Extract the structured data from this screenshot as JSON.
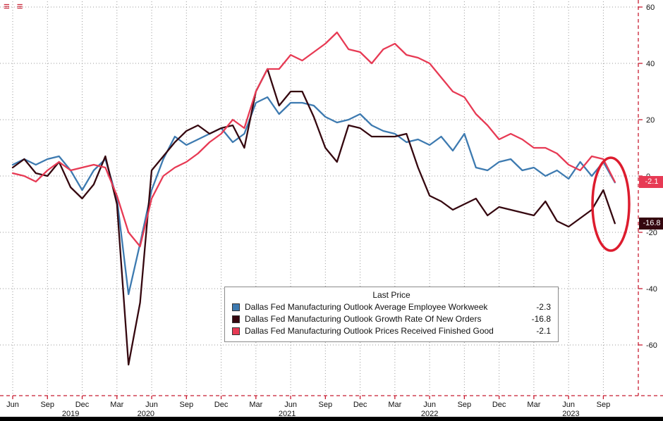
{
  "window": {
    "menu_icon": "≡",
    "menu_icon_2": "≡"
  },
  "chart_data": {
    "type": "line",
    "x_frequency": "monthly",
    "x_start": "2019-06",
    "x_end": "2023-10",
    "grid": "dotted",
    "ylim": [
      -70,
      62
    ],
    "yticks": [
      60,
      40,
      20,
      0,
      -20,
      -40,
      -60
    ],
    "x_ticks": [
      {
        "i": 0,
        "label": "Jun"
      },
      {
        "i": 3,
        "label": "Sep"
      },
      {
        "i": 6,
        "label": "Dec"
      },
      {
        "i": 9,
        "label": "Mar"
      },
      {
        "i": 12,
        "label": "Jun"
      },
      {
        "i": 15,
        "label": "Sep"
      },
      {
        "i": 18,
        "label": "Dec"
      },
      {
        "i": 21,
        "label": "Mar"
      },
      {
        "i": 24,
        "label": "Jun"
      },
      {
        "i": 27,
        "label": "Sep"
      },
      {
        "i": 30,
        "label": "Dec"
      },
      {
        "i": 33,
        "label": "Mar"
      },
      {
        "i": 36,
        "label": "Jun"
      },
      {
        "i": 39,
        "label": "Sep"
      },
      {
        "i": 42,
        "label": "Dec"
      },
      {
        "i": 45,
        "label": "Mar"
      },
      {
        "i": 48,
        "label": "Jun"
      },
      {
        "i": 51,
        "label": "Sep"
      }
    ],
    "year_labels": [
      {
        "i": 5.0,
        "label": "2019"
      },
      {
        "i": 11.5,
        "label": "2020"
      },
      {
        "i": 23.7,
        "label": "2021"
      },
      {
        "i": 36.0,
        "label": "2022"
      },
      {
        "i": 48.2,
        "label": "2023"
      }
    ],
    "legend": {
      "title": "Last Price",
      "position": "bottom-center"
    },
    "series": [
      {
        "name": "Dallas Fed Manufacturing Outlook Average Employee Workweek",
        "color": "#3d7ab0",
        "last_price": "-2.3",
        "values": [
          4,
          6,
          4,
          6,
          7,
          2,
          -5,
          2,
          6,
          -8,
          -42,
          -24,
          -5,
          6,
          14,
          11,
          13,
          15,
          17,
          12,
          15,
          26,
          28,
          22,
          26,
          26,
          25,
          21,
          19,
          20,
          22,
          18,
          16,
          15,
          12,
          13,
          11,
          14,
          9,
          15,
          3,
          2,
          5,
          6,
          2,
          3,
          0,
          2,
          -1,
          5,
          0,
          5,
          -2.3
        ]
      },
      {
        "name": "Dallas Fed Manufacturing Outlook Growth Rate Of New Orders",
        "color": "#35070f",
        "last_price": "-16.8",
        "values": [
          3,
          6,
          1,
          0,
          5,
          -4,
          -8,
          -3,
          7,
          -10,
          -67,
          -45,
          2,
          7,
          12,
          16,
          18,
          15,
          17,
          18,
          10,
          30,
          38,
          25,
          30,
          30,
          21,
          10,
          5,
          18,
          17,
          14,
          14,
          14,
          15,
          3,
          -7,
          -9,
          -12,
          -10,
          -8,
          -14,
          -11,
          -12,
          -13,
          -14,
          -9,
          -16,
          -18,
          -15,
          -12,
          -5,
          -16.8
        ]
      },
      {
        "name": "Dallas Fed Manufacturing Outlook Prices Received Finished Good",
        "color": "#e73a54",
        "last_price": "-2.1",
        "values": [
          1,
          0,
          -2,
          2,
          5,
          2,
          3,
          4,
          3,
          -7,
          -20,
          -25,
          -8,
          0,
          3,
          5,
          8,
          12,
          15,
          20,
          17,
          30,
          38,
          38,
          43,
          41,
          44,
          47,
          51,
          45,
          44,
          40,
          45,
          47,
          43,
          42,
          40,
          35,
          30,
          28,
          22,
          18,
          13,
          15,
          13,
          10,
          10,
          8,
          4,
          2,
          7,
          6,
          -2.1
        ]
      }
    ],
    "badges": [
      {
        "label": "-2.1",
        "value": -2.1,
        "bg": "#e73a54"
      },
      {
        "label": "-16.8",
        "value": -16.8,
        "bg": "#35070f"
      }
    ],
    "annotation": {
      "shape": "ellipse",
      "color": "#dd1c2e",
      "note": "circle around last data points"
    }
  }
}
